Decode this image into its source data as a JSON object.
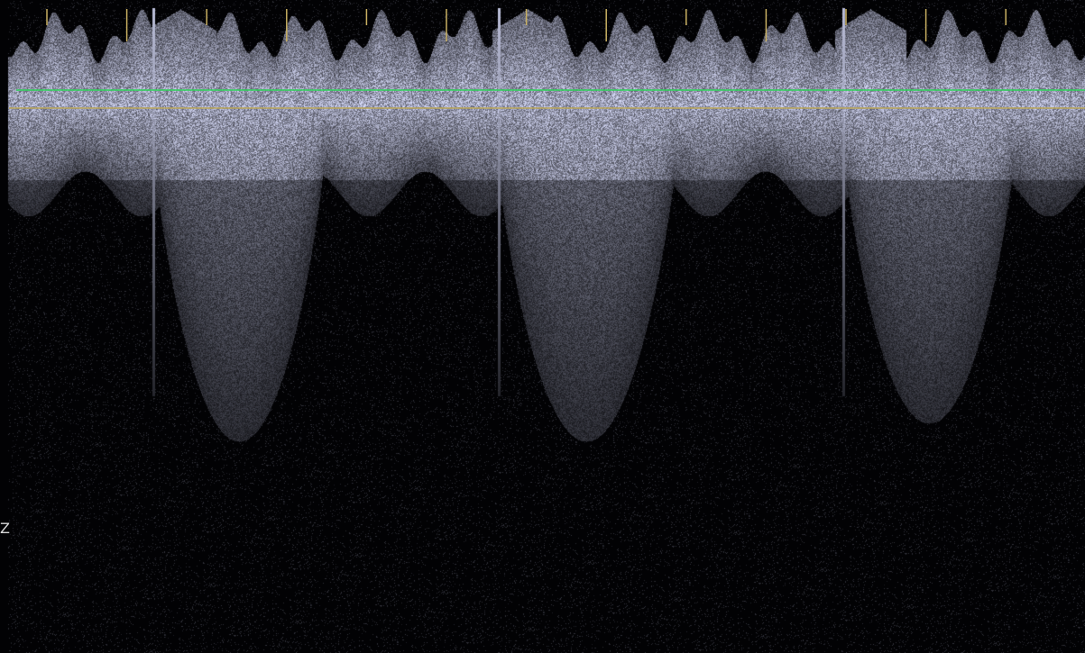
{
  "view": {
    "edge_mark": "Z"
  },
  "colors": {
    "background": "#020204",
    "spectrum": "#d8dcf2",
    "reference_line": "#2fd35a",
    "baseline": "#b9a65a",
    "tick": "#c9b062"
  },
  "timeline": {
    "tick_count": 14
  }
}
